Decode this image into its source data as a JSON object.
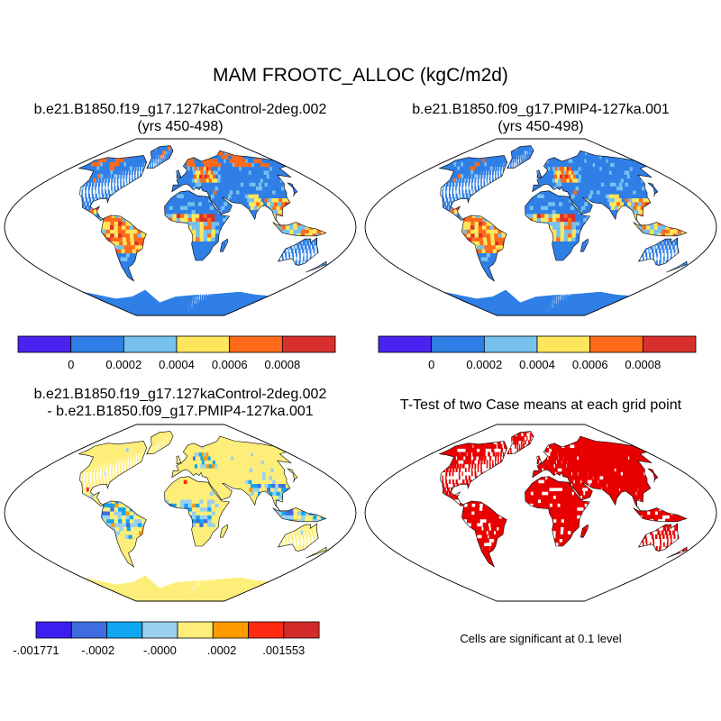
{
  "title": "MAM FROOTC_ALLOC (kgC/m2d)",
  "panels": [
    {
      "line1": "b.e21.B1850.f19_g17.127kaControl-2deg.002",
      "line2": "(yrs 450-498)",
      "map_theme": "case1"
    },
    {
      "line1": "b.e21.B1850.f09_g17.PMIP4-127ka.001",
      "line2": "(yrs 450-498)",
      "map_theme": "case2"
    },
    {
      "line1": "b.e21.B1850.f19_g17.127kaControl-2deg.002",
      "line2": "- b.e21.B1850.f09_g17.PMIP4-127ka.001",
      "map_theme": "diff"
    },
    {
      "line1": "T-Test of two Case means at each grid point",
      "line2": "",
      "map_theme": "ttest"
    }
  ],
  "colorbars": {
    "case": {
      "colors": [
        "#4a23f0",
        "#2f7fe6",
        "#76c1ee",
        "#fde65c",
        "#ff6a1a",
        "#d8302c"
      ],
      "labels": [
        "0",
        "0.0002",
        "0.0004",
        "0.0006",
        "0.0008"
      ]
    },
    "diff": {
      "colors": [
        "#3b1ef0",
        "#3f6ddf",
        "#10a6f0",
        "#9ad0ee",
        "#fdee7a",
        "#ff9a00",
        "#ff2a12",
        "#d22a28"
      ],
      "labels": [
        "-.001771",
        "-.0002",
        "-.0000",
        ".0002",
        ".001553"
      ]
    }
  },
  "significance_note": "Cells are significant at 0.1 level",
  "colors": {
    "ocean": "#ffffff",
    "coast": "#000000",
    "ttest_significant": "#e80000"
  }
}
